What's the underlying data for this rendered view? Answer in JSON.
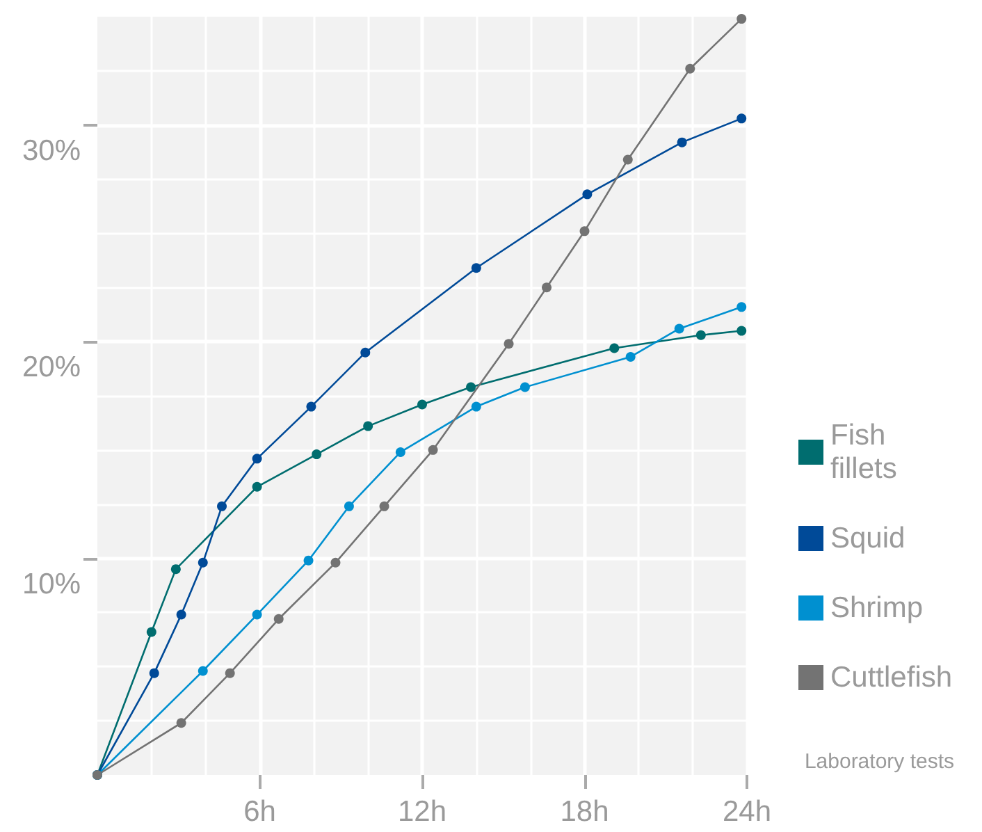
{
  "chart_data": {
    "type": "line",
    "xlim": [
      0,
      24
    ],
    "xticks": [
      {
        "value": 6,
        "label": "6h"
      },
      {
        "value": 12,
        "label": "12h"
      },
      {
        "value": 18,
        "label": "18h"
      },
      {
        "value": 24,
        "label": "24h"
      }
    ],
    "ylim": [
      0,
      35
    ],
    "yticks": [
      {
        "value": 10,
        "label": "10%"
      },
      {
        "value": 20,
        "label": "20%"
      },
      {
        "value": 30,
        "label": "30%"
      }
    ],
    "grid": true,
    "legend": "right",
    "marker": "circle",
    "line_style": "solid",
    "annotations": [
      "Laboratory tests"
    ],
    "series": [
      {
        "name": "Fish fillets",
        "color": "#006d6f",
        "x": [
          0,
          2,
          2.9,
          5.9,
          8.1,
          10,
          12,
          13.8,
          19.1,
          22.3,
          23.8
        ],
        "values": [
          0,
          6.6,
          9.5,
          13.3,
          14.8,
          16.1,
          17.1,
          17.9,
          19.7,
          20.3,
          20.5
        ]
      },
      {
        "name": "Squid",
        "color": "#004a98",
        "x": [
          0,
          2.1,
          3.1,
          3.9,
          4.6,
          5.9,
          7.9,
          9.9,
          14,
          18.1,
          21.6,
          23.8
        ],
        "values": [
          0,
          4.7,
          7.4,
          9.8,
          12.4,
          14.6,
          17,
          19.5,
          23.4,
          26.8,
          29.2,
          30.3
        ]
      },
      {
        "name": "Shrimp",
        "color": "#0090d0",
        "x": [
          0,
          3.9,
          5.9,
          7.8,
          9.3,
          11.2,
          14,
          15.8,
          19.7,
          21.5,
          23.8
        ],
        "values": [
          0,
          4.8,
          7.4,
          9.9,
          12.4,
          14.9,
          17,
          17.9,
          19.3,
          20.6,
          21.6
        ]
      },
      {
        "name": "Cuttlefish",
        "color": "#737373",
        "x": [
          0,
          3.1,
          4.9,
          6.7,
          8.8,
          10.6,
          12.4,
          15.2,
          16.6,
          18,
          19.6,
          21.9,
          23.8
        ],
        "values": [
          0,
          2.4,
          4.7,
          7.2,
          9.8,
          12.4,
          15,
          19.9,
          22.5,
          25.1,
          28.4,
          32.6,
          34.9
        ]
      }
    ]
  }
}
